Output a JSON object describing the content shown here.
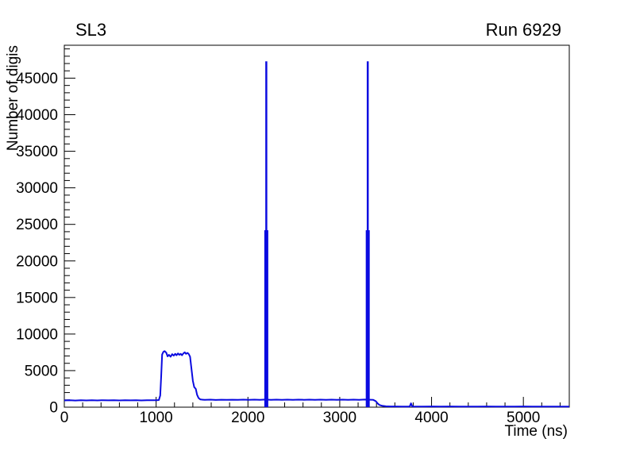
{
  "page": {
    "title_left": "SL3",
    "title_right": "Run 6929"
  },
  "chart_data": {
    "type": "line",
    "title": "SL3",
    "annotation_right": "Run 6929",
    "xlabel": "Time (ns)",
    "ylabel": "Number of digis",
    "xlim": [
      0,
      5500
    ],
    "ylim": [
      0,
      49500
    ],
    "x_major_ticks": [
      0,
      1000,
      2000,
      3000,
      4000,
      5000
    ],
    "x_minor_step": 200,
    "y_major_ticks": [
      0,
      5000,
      10000,
      15000,
      20000,
      25000,
      30000,
      35000,
      40000,
      45000
    ],
    "y_minor_step": 1000,
    "grid": false,
    "legend": false,
    "line_color": "#0b0be0",
    "frame_color": "#000000",
    "series": [
      {
        "name": "number-of-digis-vs-time",
        "points": [
          [
            0,
            920
          ],
          [
            60,
            950
          ],
          [
            120,
            910
          ],
          [
            180,
            955
          ],
          [
            240,
            925
          ],
          [
            300,
            950
          ],
          [
            360,
            920
          ],
          [
            420,
            950
          ],
          [
            480,
            930
          ],
          [
            540,
            955
          ],
          [
            600,
            925
          ],
          [
            660,
            950
          ],
          [
            720,
            935
          ],
          [
            780,
            955
          ],
          [
            840,
            925
          ],
          [
            900,
            950
          ],
          [
            960,
            940
          ],
          [
            1005,
            955
          ],
          [
            1030,
            980
          ],
          [
            1045,
            1600
          ],
          [
            1055,
            4200
          ],
          [
            1065,
            7200
          ],
          [
            1078,
            7550
          ],
          [
            1092,
            7660
          ],
          [
            1110,
            7450
          ],
          [
            1125,
            6950
          ],
          [
            1140,
            7150
          ],
          [
            1158,
            6900
          ],
          [
            1175,
            7250
          ],
          [
            1192,
            7050
          ],
          [
            1208,
            7300
          ],
          [
            1222,
            7100
          ],
          [
            1238,
            7350
          ],
          [
            1252,
            7150
          ],
          [
            1268,
            7300
          ],
          [
            1282,
            7100
          ],
          [
            1296,
            7350
          ],
          [
            1312,
            7500
          ],
          [
            1326,
            7300
          ],
          [
            1342,
            7420
          ],
          [
            1356,
            7250
          ],
          [
            1370,
            6900
          ],
          [
            1385,
            5200
          ],
          [
            1400,
            3600
          ],
          [
            1415,
            2750
          ],
          [
            1432,
            2500
          ],
          [
            1446,
            1700
          ],
          [
            1462,
            1250
          ],
          [
            1482,
            1050
          ],
          [
            1530,
            1000
          ],
          [
            1590,
            1030
          ],
          [
            1650,
            990
          ],
          [
            1710,
            1020
          ],
          [
            1770,
            995
          ],
          [
            1830,
            1025
          ],
          [
            1890,
            1000
          ],
          [
            1950,
            1030
          ],
          [
            2010,
            1005
          ],
          [
            2070,
            1030
          ],
          [
            2130,
            1000
          ],
          [
            2190,
            1040
          ],
          [
            2250,
            1010
          ],
          [
            2310,
            1030
          ],
          [
            2370,
            1000
          ],
          [
            2430,
            1030
          ],
          [
            2490,
            1005
          ],
          [
            2550,
            1035
          ],
          [
            2610,
            1010
          ],
          [
            2670,
            1030
          ],
          [
            2730,
            1000
          ],
          [
            2790,
            1030
          ],
          [
            2850,
            1005
          ],
          [
            2910,
            1035
          ],
          [
            2970,
            1010
          ],
          [
            3030,
            1030
          ],
          [
            3090,
            1000
          ],
          [
            3150,
            1030
          ],
          [
            3210,
            1010
          ],
          [
            3270,
            1040
          ],
          [
            3330,
            1020
          ],
          [
            3365,
            1000
          ],
          [
            3392,
            820
          ],
          [
            3412,
            520
          ],
          [
            3432,
            300
          ],
          [
            3462,
            180
          ],
          [
            3502,
            120
          ],
          [
            3552,
            100
          ],
          [
            3602,
            95
          ],
          [
            3680,
            90
          ],
          [
            3762,
            90
          ],
          [
            3776,
            520
          ],
          [
            3790,
            95
          ],
          [
            3900,
            85
          ],
          [
            4000,
            95
          ],
          [
            4100,
            85
          ],
          [
            4200,
            95
          ],
          [
            4300,
            85
          ],
          [
            4400,
            90
          ],
          [
            4500,
            85
          ],
          [
            4600,
            95
          ],
          [
            4700,
            85
          ],
          [
            4800,
            90
          ],
          [
            4900,
            85
          ],
          [
            5000,
            95
          ],
          [
            5100,
            85
          ],
          [
            5200,
            90
          ],
          [
            5300,
            85
          ],
          [
            5400,
            90
          ],
          [
            5500,
            90
          ]
        ]
      }
    ],
    "spikes": [
      {
        "t": 2200,
        "outer_top": 24200,
        "peak": 47300
      },
      {
        "t": 3305,
        "outer_top": 24200,
        "peak": 47300
      }
    ]
  }
}
